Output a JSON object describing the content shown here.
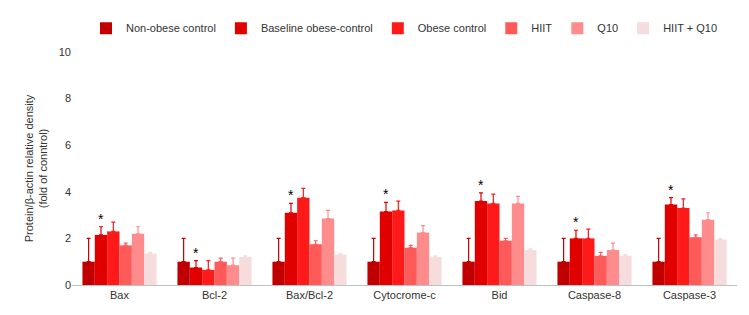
{
  "chart_data": {
    "type": "bar",
    "y_label": "Protein/β-actin relative density\n(fold of conntrol)",
    "categories": [
      "Bax",
      "Bcl-2",
      "Bax/Bcl-2",
      "Cytocrome-c",
      "Bid",
      "Caspase-8",
      "Caspase-3"
    ],
    "series": [
      {
        "name": "Non-obese control",
        "color": "#c00000",
        "values": [
          1,
          1,
          1,
          1,
          1,
          1,
          1
        ],
        "errors": [
          1.0,
          1.0,
          1.0,
          1.0,
          1.0,
          1.0,
          1.0
        ]
      },
      {
        "name": "Baseline obese-control",
        "color": "#e00000",
        "values": [
          2.15,
          0.75,
          3.1,
          3.15,
          3.6,
          2.0,
          3.45
        ],
        "errors": [
          0.35,
          0.3,
          0.4,
          0.4,
          0.35,
          0.35,
          0.3
        ]
      },
      {
        "name": "Obese control",
        "color": "#ff1a1a",
        "values": [
          2.3,
          0.65,
          3.75,
          3.2,
          3.5,
          2.0,
          3.3
        ],
        "errors": [
          0.4,
          0.4,
          0.4,
          0.4,
          0.4,
          0.4,
          0.4
        ]
      },
      {
        "name": "HIIT",
        "color": "#ff5a5a",
        "values": [
          1.7,
          1.0,
          1.75,
          1.6,
          1.9,
          1.25,
          2.05
        ],
        "errors": [
          0.1,
          0.15,
          0.15,
          0.1,
          0.1,
          0.15,
          0.1
        ]
      },
      {
        "name": "Q10",
        "color": "#ff8c8c",
        "values": [
          2.2,
          0.85,
          2.85,
          2.25,
          3.5,
          1.5,
          2.8
        ],
        "errors": [
          0.3,
          0.3,
          0.35,
          0.3,
          0.3,
          0.3,
          0.3
        ]
      },
      {
        "name": "HIIT + Q10",
        "color": "#f6dcdc",
        "values": [
          1.35,
          1.2,
          1.3,
          1.2,
          1.5,
          1.25,
          1.95
        ],
        "errors": [
          0.05,
          0.05,
          0.05,
          0.05,
          0.05,
          0.05,
          0.05
        ]
      }
    ],
    "ylim": [
      0,
      10
    ],
    "yticks": [
      0,
      2,
      4,
      6,
      8,
      10
    ],
    "grid": false,
    "legend": "top",
    "annotations": [
      {
        "text": "*",
        "category": "Bax",
        "series": "Baseline obese-control"
      },
      {
        "text": "*",
        "category": "Bcl-2",
        "series": "Baseline obese-control"
      },
      {
        "text": "*",
        "category": "Bax/Bcl-2",
        "series": "Baseline obese-control"
      },
      {
        "text": "*",
        "category": "Cytocrome-c",
        "series": "Baseline obese-control"
      },
      {
        "text": "*",
        "category": "Bid",
        "series": "Baseline obese-control"
      },
      {
        "text": "*",
        "category": "Caspase-8",
        "series": "Baseline obese-control"
      },
      {
        "text": "*",
        "category": "Caspase-3",
        "series": "Baseline obese-control"
      }
    ]
  }
}
